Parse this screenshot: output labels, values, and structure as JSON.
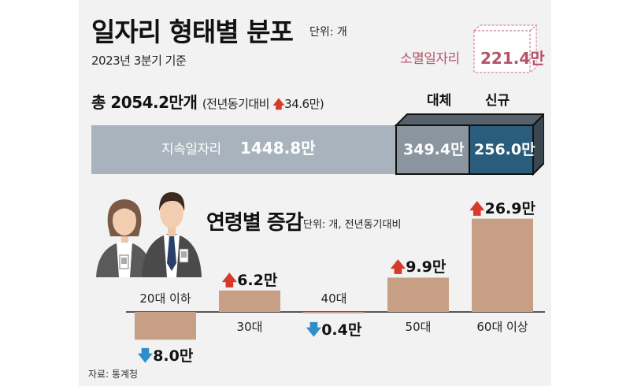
{
  "title": "일자리 형태별 분포",
  "title_unit": "단위: 개",
  "subtitle": "2023년 3분기 기준",
  "total": {
    "label": "총 2054.2만개",
    "note_prefix": "(전년동기대비",
    "arrow": "up",
    "change": "34.6만)"
  },
  "extinct": {
    "label": "소멸일자리",
    "value": "221.4만"
  },
  "composition": {
    "continuing": {
      "label": "지속일자리",
      "value_text": "1448.8만",
      "value": 1448.8
    },
    "replacement": {
      "label": "대체",
      "value_text": "349.4만",
      "value": 349.4
    },
    "new": {
      "label": "신규",
      "value_text": "256.0만",
      "value": 256.0
    }
  },
  "age_section": {
    "title": "연령별 증감",
    "unit": "단위: 개, 전년동기대비"
  },
  "chart_data": {
    "type": "bar",
    "categories": [
      "20대 이하",
      "30대",
      "40대",
      "50대",
      "60대 이상"
    ],
    "values": [
      -8.0,
      6.2,
      -0.4,
      9.9,
      26.9
    ],
    "value_labels": [
      "8.0만",
      "6.2만",
      "0.4만",
      "9.9만",
      "26.9만"
    ],
    "colors": {
      "bar": "#c79f84",
      "up": "#d63a2a",
      "down": "#2e8fc8"
    }
  },
  "source": "자료: 통계청",
  "colors": {
    "continuing": "#a9b3bd",
    "replacement": "#8a959f",
    "new": "#2a5d7b",
    "extinct": "#b5536b"
  }
}
